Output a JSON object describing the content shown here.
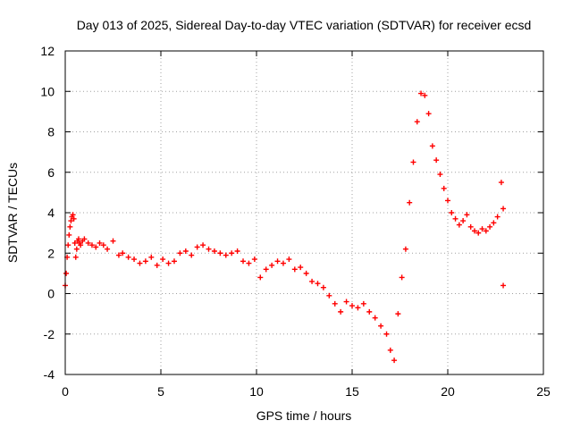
{
  "chart_data": {
    "type": "scatter",
    "title": "Day 013 of 2025, Sidereal Day-to-day VTEC variation (SDTVAR) for receiver ecsd",
    "xlabel": "GPS time / hours",
    "ylabel": "SDTVAR / TECUs",
    "xlim": [
      0,
      25
    ],
    "ylim": [
      -4,
      12
    ],
    "x_ticks": [
      0,
      5,
      10,
      15,
      20,
      25
    ],
    "y_ticks": [
      -4,
      -2,
      0,
      2,
      4,
      6,
      8,
      10,
      12
    ],
    "grid": true,
    "marker": "+",
    "color": "#ff0000",
    "series": [
      {
        "name": "SDTVAR",
        "x": [
          0.0,
          0.05,
          0.1,
          0.15,
          0.2,
          0.25,
          0.3,
          0.35,
          0.4,
          0.45,
          0.5,
          0.55,
          0.6,
          0.65,
          0.7,
          0.75,
          0.8,
          0.9,
          1.0,
          1.2,
          1.4,
          1.6,
          1.8,
          2.0,
          2.2,
          2.5,
          2.8,
          3.0,
          3.3,
          3.6,
          3.9,
          4.2,
          4.5,
          4.8,
          5.1,
          5.4,
          5.7,
          6.0,
          6.3,
          6.6,
          6.9,
          7.2,
          7.5,
          7.8,
          8.1,
          8.4,
          8.7,
          9.0,
          9.3,
          9.6,
          9.9,
          10.2,
          10.5,
          10.8,
          11.1,
          11.4,
          11.7,
          12.0,
          12.3,
          12.6,
          12.9,
          13.2,
          13.5,
          13.8,
          14.1,
          14.4,
          14.7,
          15.0,
          15.3,
          15.6,
          15.9,
          16.2,
          16.5,
          16.8,
          17.0,
          17.2,
          17.4,
          17.6,
          17.8,
          18.0,
          18.2,
          18.4,
          18.6,
          18.8,
          19.0,
          19.2,
          19.4,
          19.6,
          19.8,
          20.0,
          20.2,
          20.4,
          20.6,
          20.8,
          21.0,
          21.2,
          21.4,
          21.6,
          21.8,
          22.0,
          22.2,
          22.4,
          22.6,
          22.8,
          22.9,
          22.9
        ],
        "y": [
          0.4,
          1.0,
          1.8,
          2.4,
          2.9,
          3.3,
          3.6,
          3.8,
          3.9,
          3.7,
          2.5,
          1.8,
          2.2,
          2.6,
          2.7,
          2.5,
          2.4,
          2.6,
          2.7,
          2.5,
          2.4,
          2.3,
          2.5,
          2.4,
          2.2,
          2.6,
          1.9,
          2.0,
          1.8,
          1.7,
          1.5,
          1.6,
          1.8,
          1.4,
          1.7,
          1.5,
          1.6,
          2.0,
          2.1,
          1.9,
          2.3,
          2.4,
          2.2,
          2.1,
          2.0,
          1.9,
          2.0,
          2.1,
          1.6,
          1.5,
          1.7,
          0.8,
          1.2,
          1.4,
          1.6,
          1.5,
          1.7,
          1.2,
          1.3,
          1.0,
          0.6,
          0.5,
          0.3,
          -0.1,
          -0.5,
          -0.9,
          -0.4,
          -0.6,
          -0.7,
          -0.5,
          -0.9,
          -1.2,
          -1.6,
          -2.0,
          -2.8,
          -3.3,
          -1.0,
          0.8,
          2.2,
          4.5,
          6.5,
          8.5,
          9.9,
          9.8,
          8.9,
          7.3,
          6.6,
          5.9,
          5.2,
          4.6,
          4.0,
          3.7,
          3.4,
          3.6,
          3.9,
          3.3,
          3.1,
          3.0,
          3.2,
          3.1,
          3.3,
          3.5,
          3.8,
          5.5,
          4.2,
          0.4
        ]
      }
    ]
  }
}
